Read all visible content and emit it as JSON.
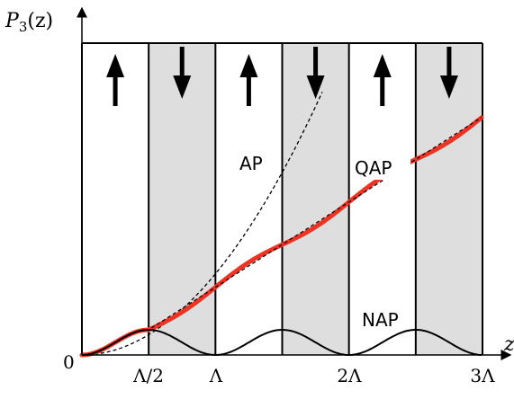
{
  "y_axis_label": "P",
  "y_axis_label_sub": "3",
  "y_axis_label_arg": "(z)",
  "x_axis_label": "z",
  "origin_label": "0",
  "x_ticks": [
    "Λ/2",
    "Λ",
    "2Λ",
    "3Λ"
  ],
  "curve_labels": {
    "ap": "AP",
    "qap": "QAP",
    "nap": "NAP"
  },
  "domains": [
    {
      "orientation": "up",
      "shaded": false
    },
    {
      "orientation": "down",
      "shaded": true
    },
    {
      "orientation": "up",
      "shaded": false
    },
    {
      "orientation": "down",
      "shaded": true
    },
    {
      "orientation": "up",
      "shaded": false
    },
    {
      "orientation": "down",
      "shaded": true
    }
  ],
  "colors": {
    "shade": "#dedede",
    "qap_thick": "#ee3322",
    "line": "#000000"
  }
}
